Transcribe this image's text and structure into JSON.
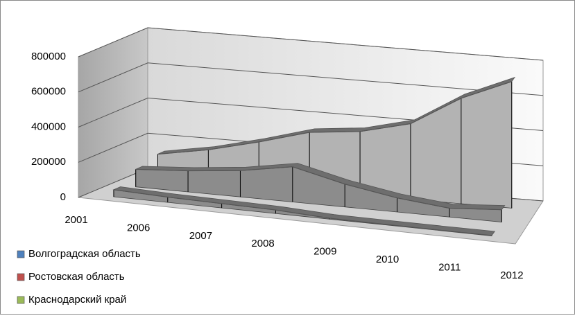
{
  "chart_data": {
    "type": "area3d",
    "categories": [
      "2001",
      "2006",
      "2007",
      "2008",
      "2009",
      "2010",
      "2011",
      "2012"
    ],
    "series": [
      {
        "name": "Волгоградская область",
        "color": "#4f81bd",
        "values": [
          40000,
          30000,
          25000,
          20000,
          5000,
          3000,
          2000,
          2000
        ]
      },
      {
        "name": "Ростовская область",
        "color": "#c0504d",
        "values": [
          100000,
          120000,
          150000,
          200000,
          130000,
          80000,
          50000,
          70000
        ]
      },
      {
        "name": "Краснодарский край",
        "color": "#9bbb59",
        "values": [
          130000,
          180000,
          250000,
          330000,
          360000,
          430000,
          600000,
          720000
        ]
      }
    ],
    "ylim": [
      0,
      800000
    ],
    "yticks": [
      0,
      200000,
      400000,
      600000,
      800000
    ],
    "grid": true
  }
}
